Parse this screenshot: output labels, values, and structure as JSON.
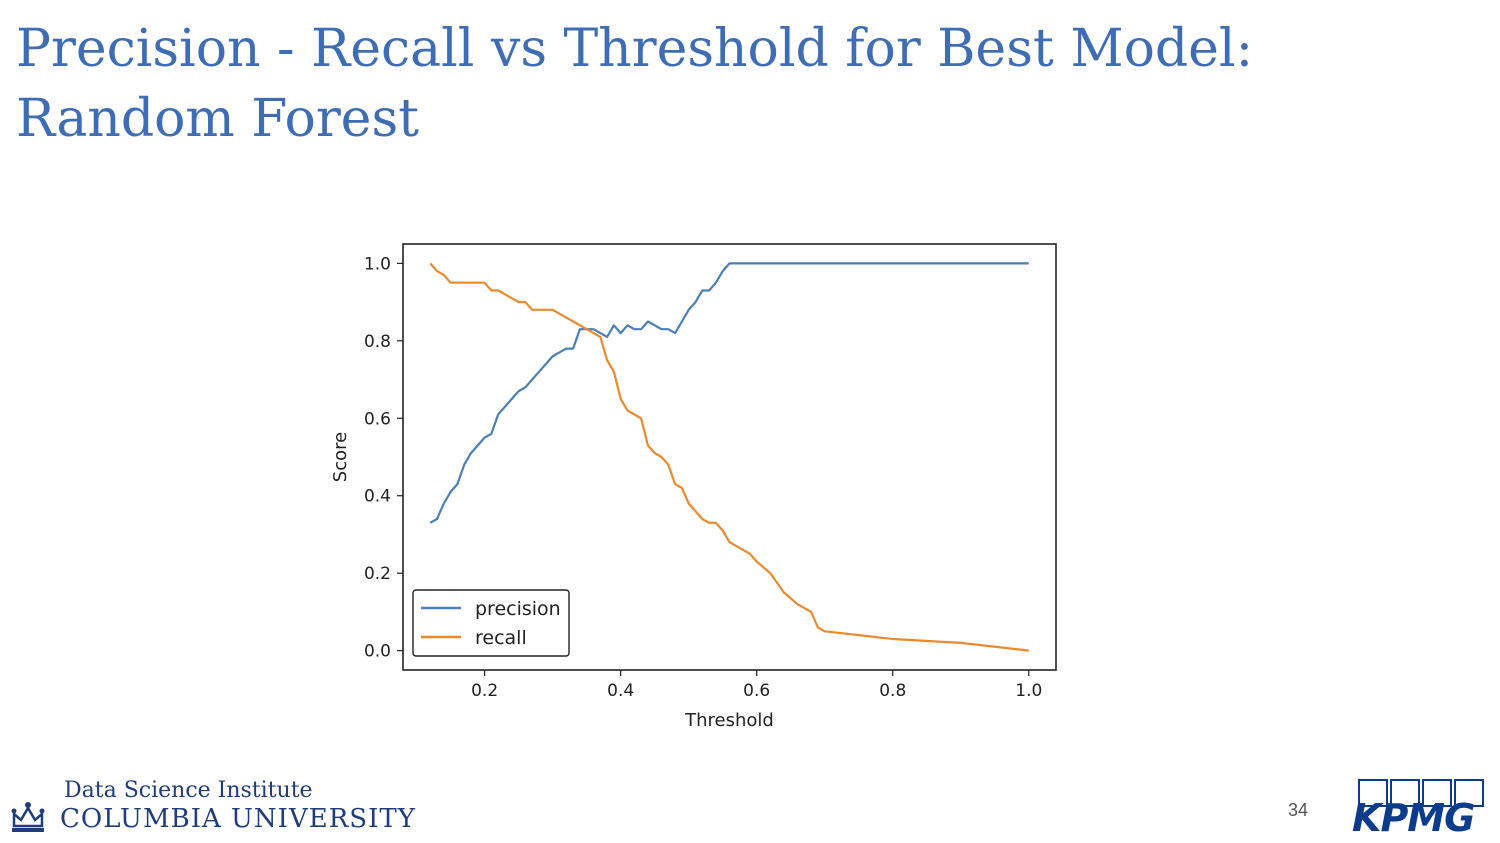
{
  "slide": {
    "title_line1": "Precision - Recall vs Threshold for Best Model:",
    "title_line2": "Random Forest",
    "page_number": "34"
  },
  "footer": {
    "institute": "Data Science Institute",
    "university": "COLUMBIA UNIVERSITY",
    "partner_logo": "KPMG",
    "crown_icon": "crown-icon"
  },
  "colors": {
    "title": "#3f6db5",
    "precision": "#4c7fb8",
    "recall": "#ea8a2e",
    "columbia": "#1f3d7a",
    "kpmg": "#0b3c8c"
  },
  "chart_data": {
    "type": "line",
    "title": "",
    "xlabel": "Threshold",
    "ylabel": "Score",
    "xlim": [
      0.08,
      1.04
    ],
    "ylim": [
      -0.05,
      1.05
    ],
    "xticks": [
      0.2,
      0.4,
      0.6,
      0.8,
      1.0
    ],
    "xtick_labels": [
      "0.2",
      "0.4",
      "0.6",
      "0.8",
      "1.0"
    ],
    "yticks": [
      0.0,
      0.2,
      0.4,
      0.6,
      0.8,
      1.0
    ],
    "ytick_labels": [
      "0.0",
      "0.2",
      "0.4",
      "0.6",
      "0.8",
      "1.0"
    ],
    "grid": false,
    "legend_position": "lower-left",
    "series": [
      {
        "name": "precision",
        "color": "#4c7fb8",
        "x": [
          0.12,
          0.13,
          0.14,
          0.15,
          0.16,
          0.17,
          0.18,
          0.19,
          0.2,
          0.21,
          0.22,
          0.23,
          0.24,
          0.25,
          0.26,
          0.27,
          0.28,
          0.29,
          0.3,
          0.31,
          0.32,
          0.33,
          0.34,
          0.35,
          0.36,
          0.37,
          0.38,
          0.39,
          0.4,
          0.41,
          0.42,
          0.43,
          0.44,
          0.45,
          0.46,
          0.47,
          0.48,
          0.49,
          0.5,
          0.51,
          0.52,
          0.53,
          0.54,
          0.55,
          0.56,
          0.6,
          0.7,
          0.8,
          0.9,
          1.0
        ],
        "values": [
          0.33,
          0.34,
          0.38,
          0.41,
          0.43,
          0.48,
          0.51,
          0.53,
          0.55,
          0.56,
          0.61,
          0.63,
          0.65,
          0.67,
          0.68,
          0.7,
          0.72,
          0.74,
          0.76,
          0.77,
          0.78,
          0.78,
          0.83,
          0.83,
          0.83,
          0.82,
          0.81,
          0.84,
          0.82,
          0.84,
          0.83,
          0.83,
          0.85,
          0.84,
          0.83,
          0.83,
          0.82,
          0.85,
          0.88,
          0.9,
          0.93,
          0.93,
          0.95,
          0.98,
          1.0,
          1.0,
          1.0,
          1.0,
          1.0,
          1.0
        ]
      },
      {
        "name": "recall",
        "color": "#ea8a2e",
        "x": [
          0.12,
          0.13,
          0.14,
          0.15,
          0.16,
          0.17,
          0.18,
          0.19,
          0.2,
          0.21,
          0.22,
          0.23,
          0.24,
          0.25,
          0.26,
          0.27,
          0.28,
          0.29,
          0.3,
          0.31,
          0.32,
          0.33,
          0.34,
          0.35,
          0.36,
          0.37,
          0.38,
          0.39,
          0.4,
          0.41,
          0.42,
          0.43,
          0.44,
          0.45,
          0.46,
          0.47,
          0.48,
          0.49,
          0.5,
          0.51,
          0.52,
          0.53,
          0.54,
          0.55,
          0.56,
          0.57,
          0.58,
          0.59,
          0.6,
          0.62,
          0.64,
          0.66,
          0.68,
          0.69,
          0.7,
          0.75,
          0.8,
          0.9,
          1.0
        ],
        "values": [
          1.0,
          0.98,
          0.97,
          0.95,
          0.95,
          0.95,
          0.95,
          0.95,
          0.95,
          0.93,
          0.93,
          0.92,
          0.91,
          0.9,
          0.9,
          0.88,
          0.88,
          0.88,
          0.88,
          0.87,
          0.86,
          0.85,
          0.84,
          0.83,
          0.82,
          0.81,
          0.75,
          0.72,
          0.65,
          0.62,
          0.61,
          0.6,
          0.53,
          0.51,
          0.5,
          0.48,
          0.43,
          0.42,
          0.38,
          0.36,
          0.34,
          0.33,
          0.33,
          0.31,
          0.28,
          0.27,
          0.26,
          0.25,
          0.23,
          0.2,
          0.15,
          0.12,
          0.1,
          0.06,
          0.05,
          0.04,
          0.03,
          0.02,
          0.0
        ]
      }
    ]
  }
}
